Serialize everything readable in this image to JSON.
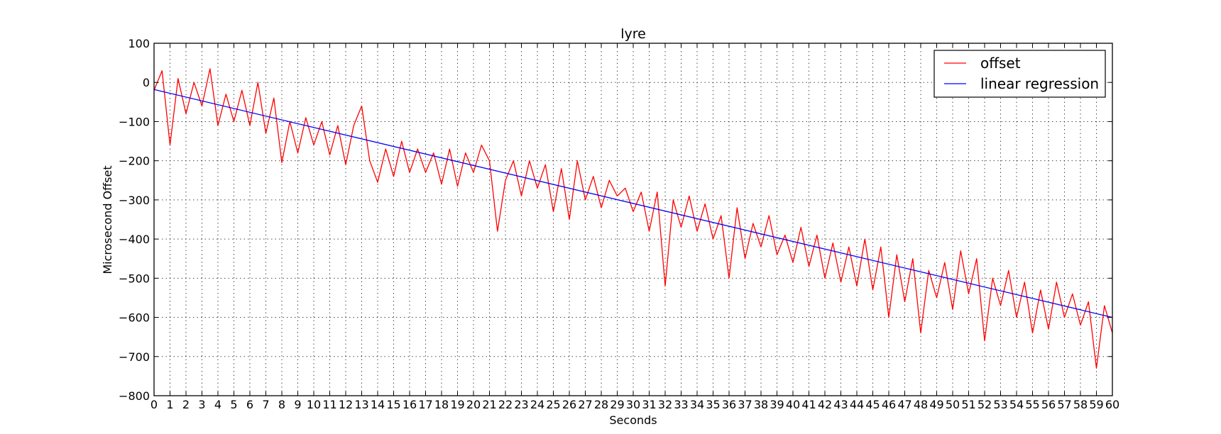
{
  "chart_data": {
    "type": "line",
    "title": "lyre",
    "xlabel": "Seconds",
    "ylabel": "Microsecond Offset",
    "xlim": [
      0,
      60
    ],
    "ylim": [
      -800,
      100
    ],
    "xticks": [
      0,
      1,
      2,
      3,
      4,
      5,
      6,
      7,
      8,
      9,
      10,
      11,
      12,
      13,
      14,
      15,
      16,
      17,
      18,
      19,
      20,
      21,
      22,
      23,
      24,
      25,
      26,
      27,
      28,
      29,
      30,
      31,
      32,
      33,
      34,
      35,
      36,
      37,
      38,
      39,
      40,
      41,
      42,
      43,
      44,
      45,
      46,
      47,
      48,
      49,
      50,
      51,
      52,
      53,
      54,
      55,
      56,
      57,
      58,
      59,
      60
    ],
    "yticks": [
      100,
      0,
      -100,
      -200,
      -300,
      -400,
      -500,
      -600,
      -700,
      -800
    ],
    "grid": true,
    "legend_position": "top-right",
    "series": [
      {
        "name": "offset",
        "color": "#ff0000",
        "x": [
          0,
          0.5,
          1,
          1.5,
          2,
          2.5,
          3,
          3.5,
          4,
          4.5,
          5,
          5.5,
          6,
          6.5,
          7,
          7.5,
          8,
          8.5,
          9,
          9.5,
          10,
          10.5,
          11,
          11.5,
          12,
          12.5,
          13,
          13.5,
          14,
          14.5,
          15,
          15.5,
          16,
          16.5,
          17,
          17.5,
          18,
          18.5,
          19,
          19.5,
          20,
          20.5,
          21,
          21.5,
          22,
          22.5,
          23,
          23.5,
          24,
          24.5,
          25,
          25.5,
          26,
          26.5,
          27,
          27.5,
          28,
          28.5,
          29,
          29.5,
          30,
          30.5,
          31,
          31.5,
          32,
          32.5,
          33,
          33.5,
          34,
          34.5,
          35,
          35.5,
          36,
          36.5,
          37,
          37.5,
          38,
          38.5,
          39,
          39.5,
          40,
          40.5,
          41,
          41.5,
          42,
          42.5,
          43,
          43.5,
          44,
          44.5,
          45,
          45.5,
          46,
          46.5,
          47,
          47.5,
          48,
          48.5,
          49,
          49.5,
          50,
          50.5,
          51,
          51.5,
          52,
          52.5,
          53,
          53.5,
          54,
          54.5,
          55,
          55.5,
          56,
          56.5,
          57,
          57.5,
          58,
          58.5,
          59,
          59.5,
          60
        ],
        "y": [
          -20,
          30,
          -160,
          10,
          -80,
          0,
          -60,
          35,
          -110,
          -30,
          -100,
          -20,
          -110,
          0,
          -130,
          -40,
          -205,
          -100,
          -180,
          -90,
          -160,
          -100,
          -185,
          -110,
          -210,
          -110,
          -60,
          -200,
          -255,
          -170,
          -240,
          -150,
          -230,
          -170,
          -230,
          -180,
          -260,
          -170,
          -265,
          -180,
          -230,
          -160,
          -200,
          -380,
          -250,
          -200,
          -290,
          -200,
          -270,
          -210,
          -330,
          -220,
          -350,
          -200,
          -300,
          -240,
          -320,
          -250,
          -290,
          -270,
          -330,
          -280,
          -380,
          -280,
          -520,
          -300,
          -370,
          -290,
          -380,
          -310,
          -400,
          -340,
          -500,
          -320,
          -450,
          -360,
          -420,
          -340,
          -440,
          -390,
          -460,
          -370,
          -470,
          -390,
          -500,
          -410,
          -510,
          -420,
          -520,
          -400,
          -530,
          -420,
          -600,
          -440,
          -560,
          -450,
          -640,
          -480,
          -550,
          -460,
          -580,
          -430,
          -540,
          -450,
          -660,
          -500,
          -570,
          -480,
          -600,
          -510,
          -640,
          -530,
          -630,
          -510,
          -600,
          -540,
          -620,
          -560,
          -730,
          -570,
          -640
        ]
      },
      {
        "name": "linear regression",
        "color": "#0000ff",
        "x": [
          0,
          60
        ],
        "y": [
          -18,
          -600
        ]
      }
    ]
  }
}
